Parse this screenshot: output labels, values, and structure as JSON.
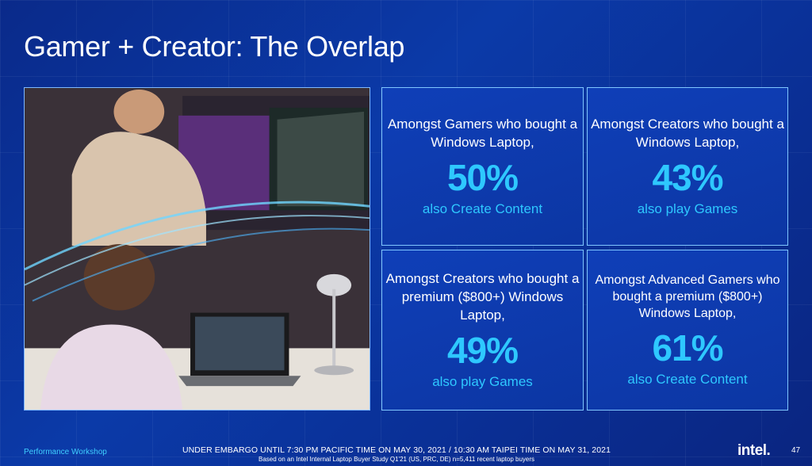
{
  "slide": {
    "title": "Gamer + Creator: The Overlap",
    "page_number": "47"
  },
  "cards": [
    {
      "lead": "Amongst Gamers who bought a Windows Laptop,",
      "percent": "50%",
      "tail": "also Create Content"
    },
    {
      "lead": "Amongst Creators who bought a Windows Laptop,",
      "percent": "43%",
      "tail": "also play Games"
    },
    {
      "lead": "Amongst Creators who bought a premium ($800+) Windows Laptop,",
      "percent": "49%",
      "tail": "also play Games"
    },
    {
      "lead": "Amongst Advanced Gamers who bought a premium ($800+) Windows Laptop,",
      "percent": "61%",
      "tail": "also Create Content"
    }
  ],
  "footer": {
    "left": "Performance Workshop",
    "embargo": "UNDER EMBARGO UNTIL 7:30 PM PACIFIC TIME ON MAY 30, 2021 / 10:30 AM TAIPEI TIME ON MAY 31, 2021",
    "basis": "Based on an Intel Internal Laptop Buyer Study Q1'21 (US, PRC, DE) n=5,411 recent laptop buyers",
    "logo": "intel."
  },
  "colors": {
    "background": "#0b3aa8",
    "accent": "#2ec8ff",
    "card_border": "#7fc6ff"
  },
  "photo": {
    "icon": "gamer-creator-photo"
  }
}
